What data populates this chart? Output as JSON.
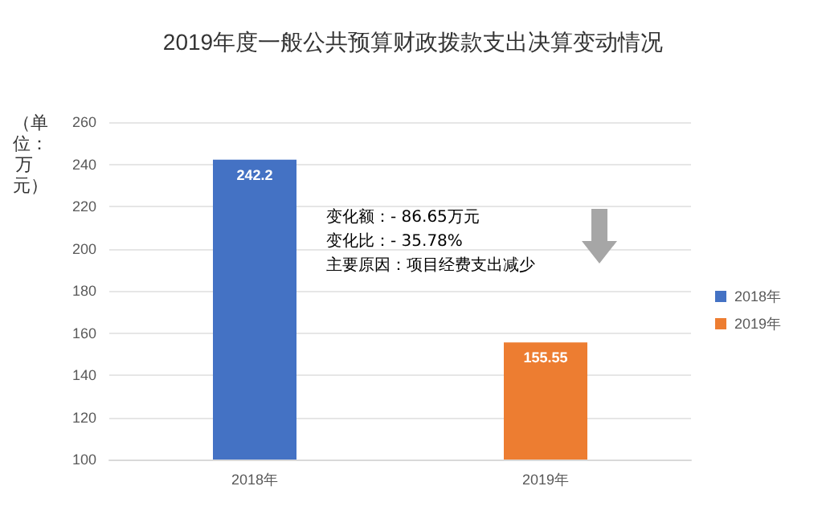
{
  "chart_data": {
    "type": "bar",
    "title": "2019年度一般公共预算财政拨款支出决算变动情况",
    "ylabel": "（单位：万元）",
    "categories": [
      "2018年",
      "2019年"
    ],
    "series": [
      {
        "name": "2018年",
        "color": "#4472c4",
        "values": [
          242.2,
          null
        ]
      },
      {
        "name": "2019年",
        "color": "#ed7d31",
        "values": [
          null,
          155.55
        ]
      }
    ],
    "stacked": true,
    "data_labels": true,
    "ylim": [
      100,
      260
    ],
    "yticks": [
      100,
      120,
      140,
      160,
      180,
      200,
      220,
      240,
      260
    ],
    "grid": "y",
    "legend": "right",
    "annotations": [
      "变化额：- 86.65万元",
      "变化比：- 35.78%",
      "主要原因：项目经费支出减少"
    ]
  }
}
